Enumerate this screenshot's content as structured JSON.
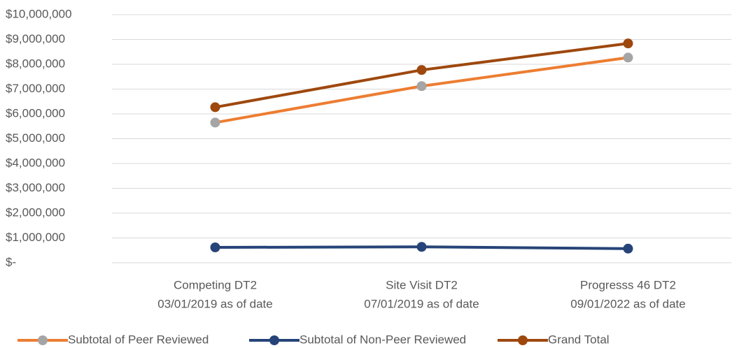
{
  "chart_data": {
    "type": "line",
    "categories": [
      [
        "Competing DT2",
        "03/01/2019 as of date"
      ],
      [
        "Site Visit DT2",
        "07/01/2019 as of date"
      ],
      [
        "Progresss 46 DT2",
        "09/01/2022 as of date"
      ]
    ],
    "series": [
      {
        "name": "Subtotal of Peer Reviewed",
        "color": "#ed7d31",
        "marker_color": "#a5a5a5",
        "values": [
          5650000,
          7120000,
          8270000
        ]
      },
      {
        "name": "Subtotal of Non-Peer Reviewed",
        "color": "#264478",
        "marker_color": "#264478",
        "values": [
          620000,
          640000,
          570000
        ]
      },
      {
        "name": "Grand Total",
        "color": "#9e480e",
        "marker_color": "#9e480e",
        "values": [
          6270000,
          7770000,
          8840000
        ]
      }
    ],
    "ylim": [
      0,
      10000000
    ],
    "yticks": [
      {
        "value": 0,
        "label": "$-"
      },
      {
        "value": 1000000,
        "label": "$1,000,000"
      },
      {
        "value": 2000000,
        "label": "$2,000,000"
      },
      {
        "value": 3000000,
        "label": "$3,000,000"
      },
      {
        "value": 4000000,
        "label": "$4,000,000"
      },
      {
        "value": 5000000,
        "label": "$5,000,000"
      },
      {
        "value": 6000000,
        "label": "$6,000,000"
      },
      {
        "value": 7000000,
        "label": "$7,000,000"
      },
      {
        "value": 8000000,
        "label": "$8,000,000"
      },
      {
        "value": 9000000,
        "label": "$9,000,000"
      },
      {
        "value": 10000000,
        "label": "$10,000,000"
      }
    ],
    "grid": true,
    "legend": "bottom"
  }
}
